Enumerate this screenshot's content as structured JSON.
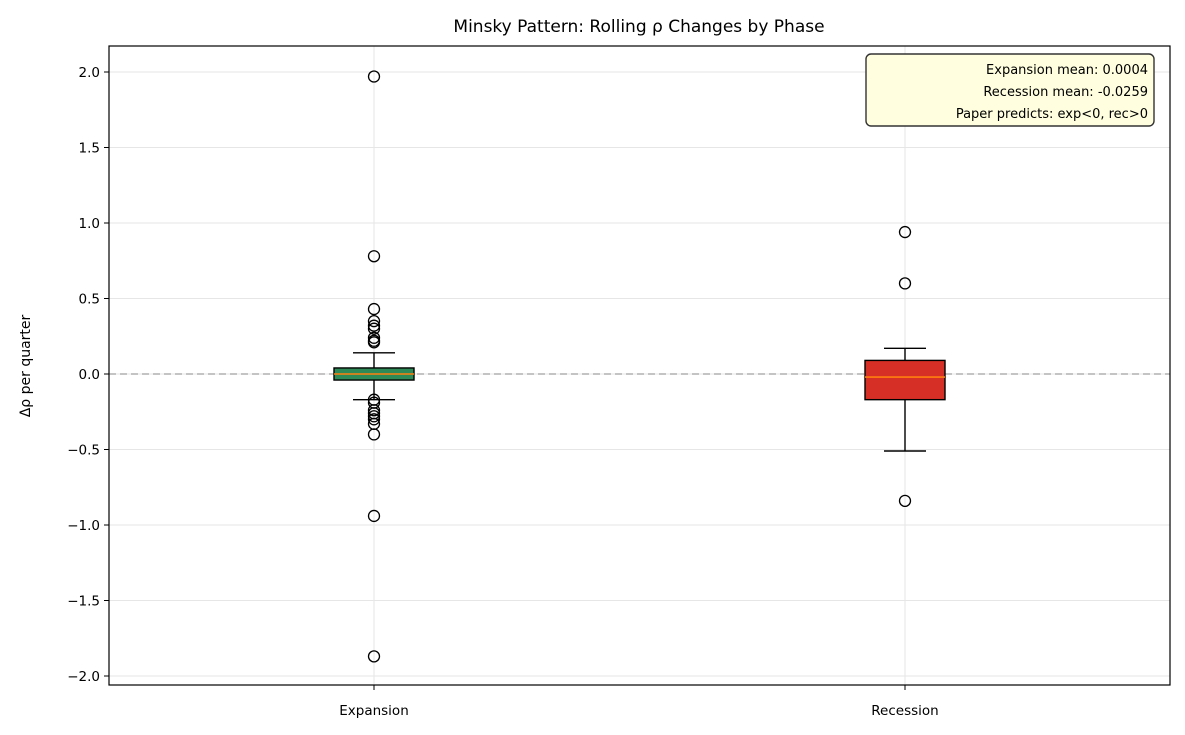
{
  "chart_data": {
    "type": "box",
    "title": "Minsky Pattern: Rolling ρ Changes by Phase",
    "xlabel": "",
    "ylabel": "Δρ per quarter",
    "ylim": [
      -2.07,
      2.17
    ],
    "yticks": [
      2.0,
      1.5,
      1.0,
      0.5,
      0.0,
      -0.5,
      -1.0,
      -1.5,
      -2.0
    ],
    "ytick_labels": [
      "2.0",
      "1.5",
      "1.0",
      "0.5",
      "0.0",
      "−0.5",
      "−1.0",
      "−1.5",
      "−2.0"
    ],
    "categories": [
      "Expansion",
      "Recession"
    ],
    "grid": true,
    "reference_line": {
      "y": 0.0,
      "style": "dashed",
      "color": "#b0b0b0"
    },
    "series": [
      {
        "name": "Expansion",
        "color": "#2e8b57",
        "median_color": "#ff7f0e",
        "q1": -0.04,
        "median": 0.0,
        "q3": 0.04,
        "whisker_low": -0.17,
        "whisker_high": 0.14,
        "outliers": [
          1.97,
          0.78,
          0.43,
          0.35,
          0.32,
          0.3,
          0.24,
          0.22,
          0.21,
          -0.17,
          -0.19,
          -0.24,
          -0.26,
          -0.28,
          -0.3,
          -0.33,
          -0.4,
          -0.94,
          -1.87
        ]
      },
      {
        "name": "Recession",
        "color": "#d62f25",
        "median_color": "#ff7f0e",
        "q1": -0.17,
        "median": -0.02,
        "q3": 0.09,
        "whisker_low": -0.51,
        "whisker_high": 0.17,
        "outliers": [
          0.94,
          0.6,
          -0.84
        ]
      }
    ],
    "annotation": {
      "lines": [
        "Expansion mean: 0.0004",
        "Recession mean: -0.0259",
        "Paper predicts: exp<0, rec>0"
      ],
      "background": "#ffffe0",
      "position": "upper right"
    }
  }
}
